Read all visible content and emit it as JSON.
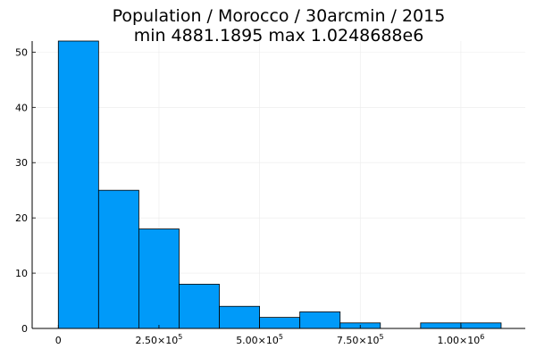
{
  "chart_data": {
    "type": "histogram",
    "title_line1": "Population / Morocco / 30arcmin / 2015",
    "title_line2": "min 4881.1895  max 1.0248688e6",
    "xlabel": "",
    "ylabel": "",
    "bin_width": 100000,
    "bins": [
      {
        "x0": 0,
        "x1": 100000,
        "count": 52
      },
      {
        "x0": 100000,
        "x1": 200000,
        "count": 25
      },
      {
        "x0": 200000,
        "x1": 300000,
        "count": 18
      },
      {
        "x0": 300000,
        "x1": 400000,
        "count": 8
      },
      {
        "x0": 400000,
        "x1": 500000,
        "count": 4
      },
      {
        "x0": 500000,
        "x1": 600000,
        "count": 2
      },
      {
        "x0": 600000,
        "x1": 700000,
        "count": 3
      },
      {
        "x0": 700000,
        "x1": 800000,
        "count": 1
      },
      {
        "x0": 800000,
        "x1": 900000,
        "count": 0
      },
      {
        "x0": 900000,
        "x1": 1000000,
        "count": 1
      },
      {
        "x0": 1000000,
        "x1": 1100000,
        "count": 1
      }
    ],
    "xlim": [
      -65000,
      1160000
    ],
    "ylim": [
      0,
      52
    ],
    "x_ticks": [
      {
        "value": 0,
        "mantissa": "0",
        "exp": ""
      },
      {
        "value": 250000,
        "mantissa": "2.50×10",
        "exp": "5"
      },
      {
        "value": 500000,
        "mantissa": "5.00×10",
        "exp": "5"
      },
      {
        "value": 750000,
        "mantissa": "7.50×10",
        "exp": "5"
      },
      {
        "value": 1000000,
        "mantissa": "1.00×10",
        "exp": "6"
      }
    ],
    "y_ticks": [
      0,
      10,
      20,
      30,
      40,
      50
    ],
    "grid": true,
    "legend": "none",
    "bar_color": "#009af9",
    "bar_edge_color": "#000000",
    "grid_color": "#ebebeb"
  }
}
